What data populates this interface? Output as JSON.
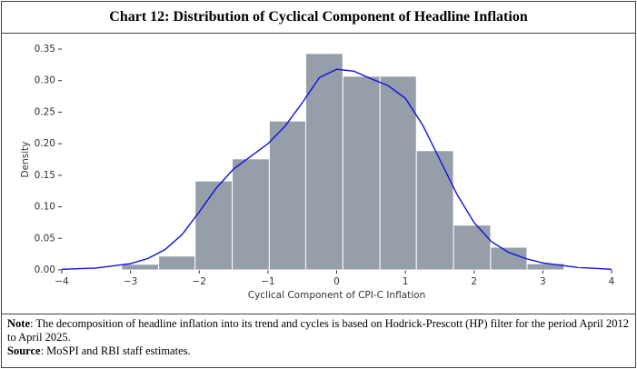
{
  "chart_data": {
    "type": "histogram",
    "title": "Chart 12: Distribution of Cyclical Component of Headline Inflation",
    "xlabel": "Cyclical Component of CPI-C Inflation",
    "ylabel": "Density",
    "bins": [
      -3.13,
      -2.59,
      -2.06,
      -1.52,
      -0.98,
      -0.45,
      0.09,
      0.63,
      1.16,
      1.7,
      2.24,
      2.77,
      3.31
    ],
    "values": [
      0.009,
      0.022,
      0.141,
      0.176,
      0.236,
      0.343,
      0.307,
      0.307,
      0.189,
      0.071,
      0.036,
      0.01
    ],
    "color": "#959ea9",
    "kde": {
      "color": "#1010e0",
      "x": [
        -4,
        -3.5,
        -3,
        -2.75,
        -2.5,
        -2.25,
        -2,
        -1.75,
        -1.5,
        -1.25,
        -1,
        -0.75,
        -0.5,
        -0.25,
        0,
        0.25,
        0.5,
        0.75,
        1,
        1.25,
        1.5,
        1.75,
        2,
        2.25,
        2.5,
        2.75,
        3,
        3.5,
        4
      ],
      "values": [
        0.001,
        0.003,
        0.01,
        0.018,
        0.032,
        0.056,
        0.092,
        0.13,
        0.16,
        0.18,
        0.2,
        0.228,
        0.265,
        0.305,
        0.318,
        0.315,
        0.303,
        0.292,
        0.272,
        0.23,
        0.175,
        0.12,
        0.075,
        0.045,
        0.028,
        0.018,
        0.011,
        0.004,
        0.001
      ]
    },
    "xlim": [
      -4,
      4
    ],
    "xticks": [
      {
        "value": -4,
        "label": "−4"
      },
      {
        "value": -3,
        "label": "−3"
      },
      {
        "value": -2,
        "label": "−2"
      },
      {
        "value": -1,
        "label": "−1"
      },
      0,
      1,
      2,
      3,
      4
    ],
    "ylim": [
      0,
      0.35
    ],
    "yticks": [
      {
        "value": 0,
        "label": "0.00"
      },
      0.05,
      {
        "value": 0.1,
        "label": "0.10"
      },
      0.15,
      {
        "value": 0.2,
        "label": "0.20"
      },
      0.25,
      {
        "value": 0.3,
        "label": "0.30"
      },
      0.35
    ],
    "grid": false
  },
  "notes": {
    "note_label": "Note",
    "note_text": ": The decomposition of headline inflation into its trend and cycles is based on Hodrick-Prescott (HP) filter for the period April 2012 to April 2025.",
    "source_label": "Source",
    "source_text": ": MoSPI and RBI staff estimates."
  }
}
